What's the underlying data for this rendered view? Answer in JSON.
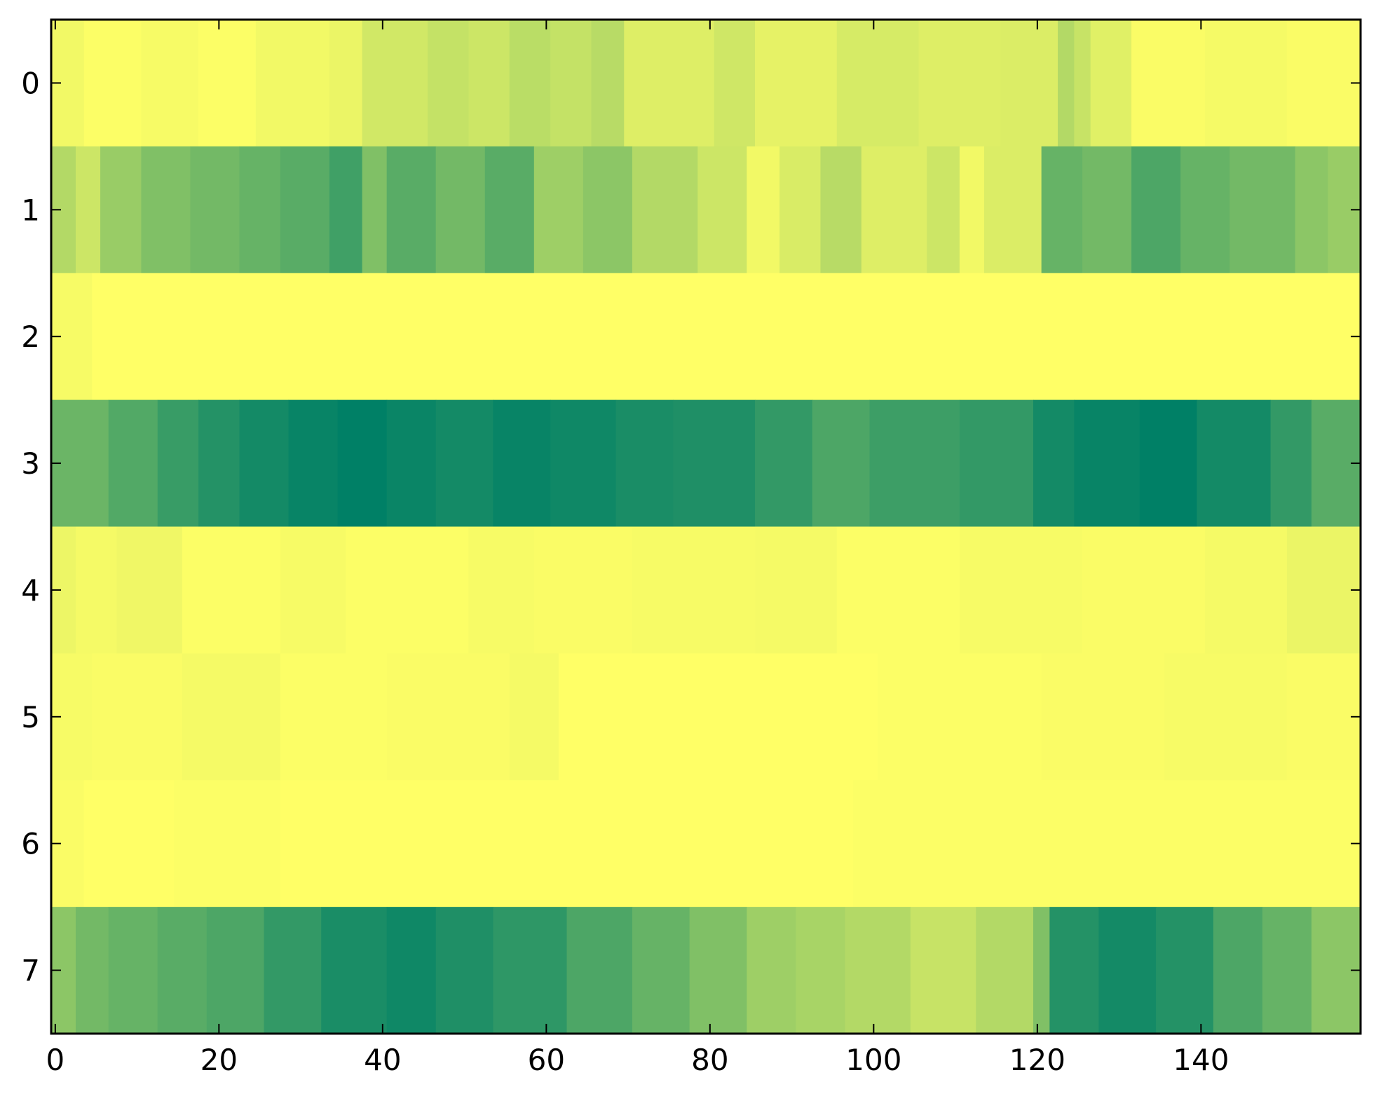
{
  "chart_data": {
    "type": "heatmap",
    "title": "",
    "xlabel": "",
    "ylabel": "",
    "colormap": "summer",
    "colors": {
      "low": "#008066",
      "high": "#ffff66",
      "frame": "#000000"
    },
    "xlim": [
      -0.5,
      159.5
    ],
    "ylim": [
      -0.5,
      7.5
    ],
    "grid": false,
    "legend": "none",
    "x_ticks": [
      {
        "value": 0,
        "label": "0"
      },
      {
        "value": 20,
        "label": "20"
      },
      {
        "value": 40,
        "label": "40"
      },
      {
        "value": 60,
        "label": "60"
      },
      {
        "value": 80,
        "label": "80"
      },
      {
        "value": 100,
        "label": "100"
      },
      {
        "value": 120,
        "label": "120"
      },
      {
        "value": 140,
        "label": "140"
      }
    ],
    "y_ticks": [
      {
        "value": 0,
        "label": "0"
      },
      {
        "value": 1,
        "label": "1"
      },
      {
        "value": 2,
        "label": "2"
      },
      {
        "value": 3,
        "label": "3"
      },
      {
        "value": 4,
        "label": "4"
      },
      {
        "value": 5,
        "label": "5"
      },
      {
        "value": 6,
        "label": "6"
      },
      {
        "value": 7,
        "label": "7"
      }
    ],
    "columns": 160,
    "rows": [
      {
        "row": 0,
        "segments": [
          [
            0,
            3,
            0.95
          ],
          [
            4,
            10,
            0.99
          ],
          [
            11,
            17,
            0.97
          ],
          [
            18,
            24,
            0.99
          ],
          [
            25,
            33,
            0.95
          ],
          [
            34,
            37,
            0.92
          ],
          [
            38,
            45,
            0.82
          ],
          [
            46,
            50,
            0.77
          ],
          [
            51,
            55,
            0.8
          ],
          [
            56,
            60,
            0.73
          ],
          [
            61,
            65,
            0.77
          ],
          [
            66,
            69,
            0.72
          ],
          [
            70,
            80,
            0.87
          ],
          [
            81,
            85,
            0.81
          ],
          [
            86,
            95,
            0.9
          ],
          [
            96,
            105,
            0.84
          ],
          [
            106,
            115,
            0.87
          ],
          [
            116,
            122,
            0.86
          ],
          [
            123,
            124,
            0.7
          ],
          [
            125,
            126,
            0.78
          ],
          [
            127,
            131,
            0.88
          ],
          [
            132,
            140,
            0.98
          ],
          [
            141,
            150,
            0.96
          ],
          [
            151,
            159,
            0.98
          ]
        ]
      },
      {
        "row": 1,
        "segments": [
          [
            0,
            2,
            0.7
          ],
          [
            3,
            5,
            0.8
          ],
          [
            6,
            10,
            0.6
          ],
          [
            11,
            16,
            0.5
          ],
          [
            17,
            22,
            0.45
          ],
          [
            23,
            27,
            0.4
          ],
          [
            28,
            33,
            0.35
          ],
          [
            34,
            37,
            0.25
          ],
          [
            38,
            40,
            0.5
          ],
          [
            41,
            46,
            0.35
          ],
          [
            47,
            52,
            0.45
          ],
          [
            53,
            58,
            0.35
          ],
          [
            59,
            64,
            0.62
          ],
          [
            65,
            70,
            0.55
          ],
          [
            71,
            78,
            0.7
          ],
          [
            79,
            84,
            0.8
          ],
          [
            85,
            88,
            0.95
          ],
          [
            89,
            93,
            0.85
          ],
          [
            94,
            98,
            0.72
          ],
          [
            99,
            106,
            0.87
          ],
          [
            107,
            110,
            0.8
          ],
          [
            111,
            113,
            0.95
          ],
          [
            114,
            120,
            0.86
          ],
          [
            121,
            125,
            0.4
          ],
          [
            126,
            131,
            0.45
          ],
          [
            132,
            137,
            0.3
          ],
          [
            138,
            143,
            0.4
          ],
          [
            144,
            151,
            0.45
          ],
          [
            152,
            155,
            0.55
          ],
          [
            156,
            159,
            0.6
          ]
        ]
      },
      {
        "row": 2,
        "segments": [
          [
            0,
            4,
            0.97
          ],
          [
            5,
            159,
            1.0
          ]
        ]
      },
      {
        "row": 3,
        "segments": [
          [
            0,
            6,
            0.42
          ],
          [
            7,
            12,
            0.32
          ],
          [
            13,
            17,
            0.22
          ],
          [
            18,
            22,
            0.14
          ],
          [
            23,
            28,
            0.08
          ],
          [
            29,
            34,
            0.03
          ],
          [
            35,
            40,
            0.0
          ],
          [
            41,
            46,
            0.04
          ],
          [
            47,
            53,
            0.08
          ],
          [
            54,
            60,
            0.03
          ],
          [
            61,
            68,
            0.06
          ],
          [
            69,
            75,
            0.1
          ],
          [
            76,
            85,
            0.12
          ],
          [
            86,
            92,
            0.2
          ],
          [
            93,
            99,
            0.3
          ],
          [
            100,
            110,
            0.24
          ],
          [
            111,
            119,
            0.2
          ],
          [
            120,
            124,
            0.08
          ],
          [
            125,
            132,
            0.03
          ],
          [
            133,
            139,
            0.0
          ],
          [
            140,
            148,
            0.08
          ],
          [
            149,
            153,
            0.2
          ],
          [
            154,
            159,
            0.35
          ]
        ]
      },
      {
        "row": 4,
        "segments": [
          [
            0,
            2,
            0.93
          ],
          [
            3,
            7,
            0.96
          ],
          [
            8,
            15,
            0.94
          ],
          [
            16,
            27,
            0.99
          ],
          [
            28,
            35,
            0.97
          ],
          [
            36,
            50,
            0.99
          ],
          [
            51,
            58,
            0.97
          ],
          [
            59,
            70,
            0.98
          ],
          [
            71,
            85,
            0.97
          ],
          [
            86,
            95,
            0.96
          ],
          [
            96,
            110,
            0.99
          ],
          [
            111,
            125,
            0.97
          ],
          [
            126,
            140,
            0.98
          ],
          [
            141,
            150,
            0.96
          ],
          [
            151,
            159,
            0.92
          ]
        ]
      },
      {
        "row": 5,
        "segments": [
          [
            0,
            4,
            0.97
          ],
          [
            5,
            15,
            0.98
          ],
          [
            16,
            27,
            0.96
          ],
          [
            28,
            40,
            0.99
          ],
          [
            41,
            55,
            0.98
          ],
          [
            56,
            61,
            0.96
          ],
          [
            62,
            100,
            1.0
          ],
          [
            101,
            120,
            0.99
          ],
          [
            121,
            135,
            0.98
          ],
          [
            136,
            150,
            0.97
          ],
          [
            151,
            159,
            0.98
          ]
        ]
      },
      {
        "row": 6,
        "segments": [
          [
            0,
            3,
            0.98
          ],
          [
            4,
            14,
            1.0
          ],
          [
            15,
            27,
            0.99
          ],
          [
            28,
            97,
            1.0
          ],
          [
            98,
            159,
            0.99
          ]
        ]
      },
      {
        "row": 7,
        "segments": [
          [
            0,
            2,
            0.55
          ],
          [
            3,
            6,
            0.45
          ],
          [
            7,
            12,
            0.4
          ],
          [
            13,
            18,
            0.35
          ],
          [
            19,
            25,
            0.3
          ],
          [
            26,
            32,
            0.2
          ],
          [
            33,
            40,
            0.1
          ],
          [
            41,
            46,
            0.06
          ],
          [
            47,
            53,
            0.12
          ],
          [
            54,
            62,
            0.18
          ],
          [
            63,
            70,
            0.3
          ],
          [
            71,
            77,
            0.4
          ],
          [
            78,
            84,
            0.5
          ],
          [
            85,
            90,
            0.62
          ],
          [
            91,
            96,
            0.66
          ],
          [
            97,
            104,
            0.7
          ],
          [
            105,
            112,
            0.78
          ],
          [
            113,
            119,
            0.7
          ],
          [
            120,
            121,
            0.5
          ],
          [
            122,
            127,
            0.14
          ],
          [
            128,
            134,
            0.08
          ],
          [
            135,
            141,
            0.14
          ],
          [
            142,
            147,
            0.3
          ],
          [
            148,
            153,
            0.4
          ],
          [
            154,
            159,
            0.55
          ]
        ]
      }
    ]
  }
}
